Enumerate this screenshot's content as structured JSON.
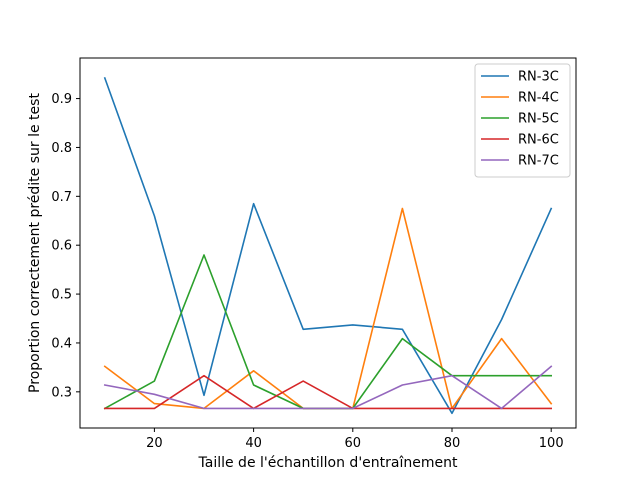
{
  "chart_data": {
    "type": "line",
    "xlabel": "Taille de l'échantillon d'entraînement",
    "ylabel": "Proportion correctement prédite sur le test",
    "xlim": [
      5,
      105
    ],
    "ylim": [
      0.226,
      0.983
    ],
    "xticks": [
      20,
      40,
      60,
      80,
      100
    ],
    "yticks": [
      0.3,
      0.4,
      0.5,
      0.6,
      0.7,
      0.8,
      0.9
    ],
    "grid": false,
    "legend_position": "top-right",
    "x": [
      10,
      20,
      30,
      40,
      50,
      60,
      70,
      80,
      90,
      100
    ],
    "series": [
      {
        "name": "RN-3C",
        "color": "#1f77b4",
        "values": [
          0.942,
          0.66,
          0.293,
          0.685,
          0.428,
          0.437,
          0.428,
          0.256,
          0.448,
          0.675
        ]
      },
      {
        "name": "RN-4C",
        "color": "#ff7f0e",
        "values": [
          0.352,
          0.276,
          0.266,
          0.343,
          0.266,
          0.266,
          0.675,
          0.266,
          0.409,
          0.276
        ]
      },
      {
        "name": "RN-5C",
        "color": "#2ca02c",
        "values": [
          0.266,
          0.322,
          0.58,
          0.314,
          0.266,
          0.266,
          0.409,
          0.333,
          0.333,
          0.333
        ]
      },
      {
        "name": "RN-6C",
        "color": "#d62728",
        "values": [
          0.266,
          0.266,
          0.333,
          0.266,
          0.322,
          0.266,
          0.266,
          0.266,
          0.266,
          0.266
        ]
      },
      {
        "name": "RN-7C",
        "color": "#9467bd",
        "values": [
          0.314,
          0.295,
          0.266,
          0.266,
          0.266,
          0.266,
          0.314,
          0.333,
          0.266,
          0.352
        ]
      }
    ]
  }
}
